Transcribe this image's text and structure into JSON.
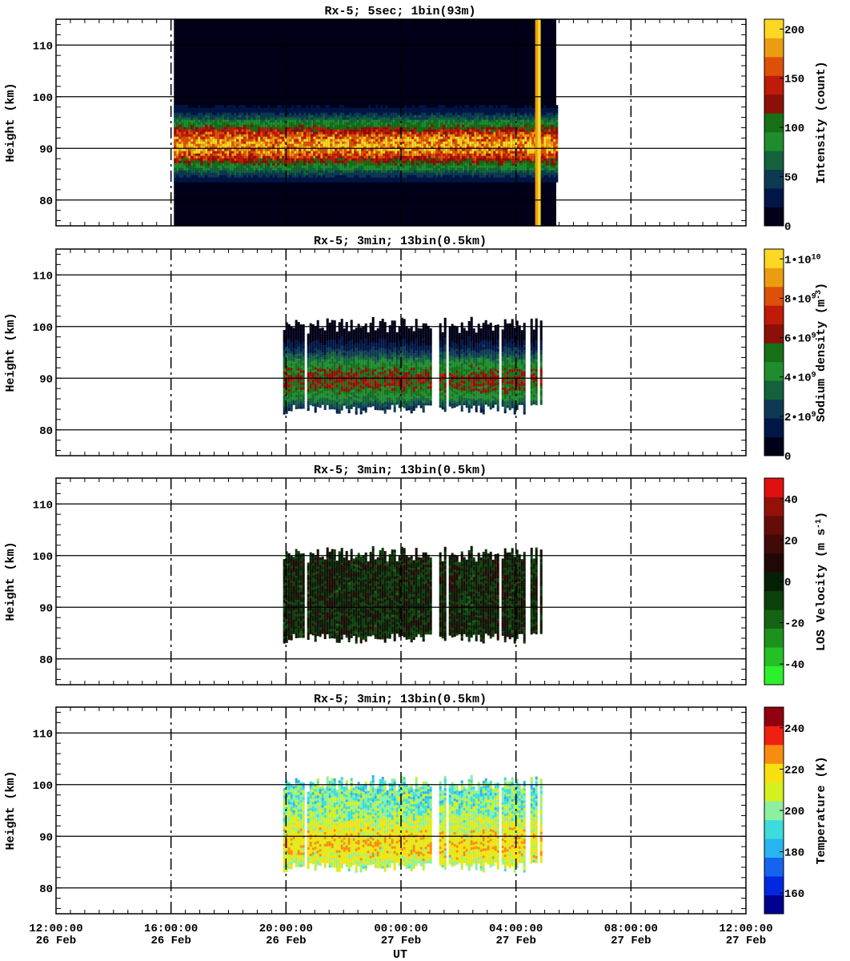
{
  "figure": {
    "x_axis": {
      "label": "UT",
      "range_hours": [
        0,
        24
      ],
      "ticks": [
        {
          "time": "12:00:00",
          "date": "26 Feb",
          "h": 0
        },
        {
          "time": "16:00:00",
          "date": "26 Feb",
          "h": 4
        },
        {
          "time": "20:00:00",
          "date": "26 Feb",
          "h": 8
        },
        {
          "time": "00:00:00",
          "date": "27 Feb",
          "h": 12
        },
        {
          "time": "04:00:00",
          "date": "27 Feb",
          "h": 16
        },
        {
          "time": "08:00:00",
          "date": "27 Feb",
          "h": 20
        },
        {
          "time": "12:00:00",
          "date": "27 Feb",
          "h": 24
        }
      ]
    }
  },
  "chart_data": [
    {
      "type": "heatmap",
      "title": "Rx-5;  5sec; 1bin(93m)",
      "ylabel": "Height (km)",
      "ylim": [
        75,
        115
      ],
      "yticks": [
        80,
        90,
        100,
        110
      ],
      "colorbar": {
        "label": "Intensity (count)",
        "range": [
          0,
          210
        ],
        "ticks": [
          {
            "v": 0,
            "label": "0"
          },
          {
            "v": 50,
            "label": "50"
          },
          {
            "v": 100,
            "label": "100"
          },
          {
            "v": 150,
            "label": "150"
          },
          {
            "v": 200,
            "label": "200"
          }
        ],
        "colors": [
          "#000018",
          "#001646",
          "#0d3a52",
          "#14623c",
          "#1f8c2e",
          "#157016",
          "#8c0f08",
          "#c01a08",
          "#dc5008",
          "#ec9c10",
          "#fcd824"
        ]
      },
      "data_span_hours": [
        4.1,
        17.4
      ],
      "layer": {
        "center_km": 90.5,
        "top_km": 98,
        "bottom_km": 83.5,
        "peak_value": 200
      },
      "notes": "background near 0 counts across full data span; bright saturated band near 04:50 UT 27 Feb"
    },
    {
      "type": "heatmap",
      "title": "Rx-5; 3min; 13bin(0.5km)",
      "ylabel": "Height (km)",
      "ylim": [
        75,
        115
      ],
      "yticks": [
        80,
        90,
        100,
        110
      ],
      "colorbar": {
        "label": "Sodium density (m^-3)",
        "range": [
          0,
          10500000000.0
        ],
        "ticks": [
          {
            "v": 0,
            "label": "0"
          },
          {
            "v": 2000000000.0,
            "label": "2•10^9"
          },
          {
            "v": 4000000000.0,
            "label": "4•10^9"
          },
          {
            "v": 6000000000.0,
            "label": "6•10^9"
          },
          {
            "v": 8000000000.0,
            "label": "8•10^9"
          },
          {
            "v": 10000000000.0,
            "label": "1•10^10"
          }
        ],
        "colors": [
          "#000018",
          "#001646",
          "#0d3a52",
          "#14623c",
          "#1f8c2e",
          "#157016",
          "#8c0f08",
          "#c01a08",
          "#dc5008",
          "#ec9c10",
          "#fcd824"
        ]
      },
      "data_span_hours": [
        7.9,
        16.9
      ],
      "layer": {
        "center_km": 89.5,
        "top_km": 100,
        "bottom_km": 84,
        "peak_value": 6500000000.0
      }
    },
    {
      "type": "heatmap",
      "title": "Rx-5; 3min; 13bin(0.5km)",
      "ylabel": "Height (km)",
      "ylim": [
        75,
        115
      ],
      "yticks": [
        80,
        90,
        100,
        110
      ],
      "colorbar": {
        "label": "LOS Velocity (m s^-1)",
        "range": [
          -50,
          50
        ],
        "ticks": [
          {
            "v": -40,
            "label": "-40"
          },
          {
            "v": -20,
            "label": "-20"
          },
          {
            "v": 0,
            "label": "0"
          },
          {
            "v": 20,
            "label": "20"
          },
          {
            "v": 40,
            "label": "40"
          }
        ],
        "colors": [
          "#2cf02c",
          "#24c024",
          "#1c921c",
          "#146414",
          "#0c400c",
          "#062006",
          "#200806",
          "#400a06",
          "#640c08",
          "#96100a",
          "#e01010"
        ]
      },
      "data_span_hours": [
        7.9,
        16.9
      ],
      "layer": {
        "center_km": 91,
        "top_km": 100,
        "bottom_km": 84,
        "peak_value": 12
      }
    },
    {
      "type": "heatmap",
      "title": "Rx-5; 3min; 13bin(0.5km)",
      "ylabel": "Height (km)",
      "ylim": [
        75,
        115
      ],
      "yticks": [
        80,
        90,
        100,
        110
      ],
      "colorbar": {
        "label": "Temperature (K)",
        "range": [
          150,
          250
        ],
        "ticks": [
          {
            "v": 160,
            "label": "160"
          },
          {
            "v": 180,
            "label": "180"
          },
          {
            "v": 200,
            "label": "200"
          },
          {
            "v": 220,
            "label": "220"
          },
          {
            "v": 240,
            "label": "240"
          }
        ],
        "colors": [
          "#000090",
          "#0028e0",
          "#1464f0",
          "#28b4f0",
          "#3cdcdc",
          "#8cf0a0",
          "#d4f020",
          "#f8e010",
          "#f88c10",
          "#f02010",
          "#900010"
        ]
      },
      "data_span_hours": [
        7.9,
        16.9
      ],
      "layer": {
        "center_km": 88.5,
        "top_km": 100,
        "bottom_km": 84,
        "peak_value": 218
      }
    }
  ]
}
